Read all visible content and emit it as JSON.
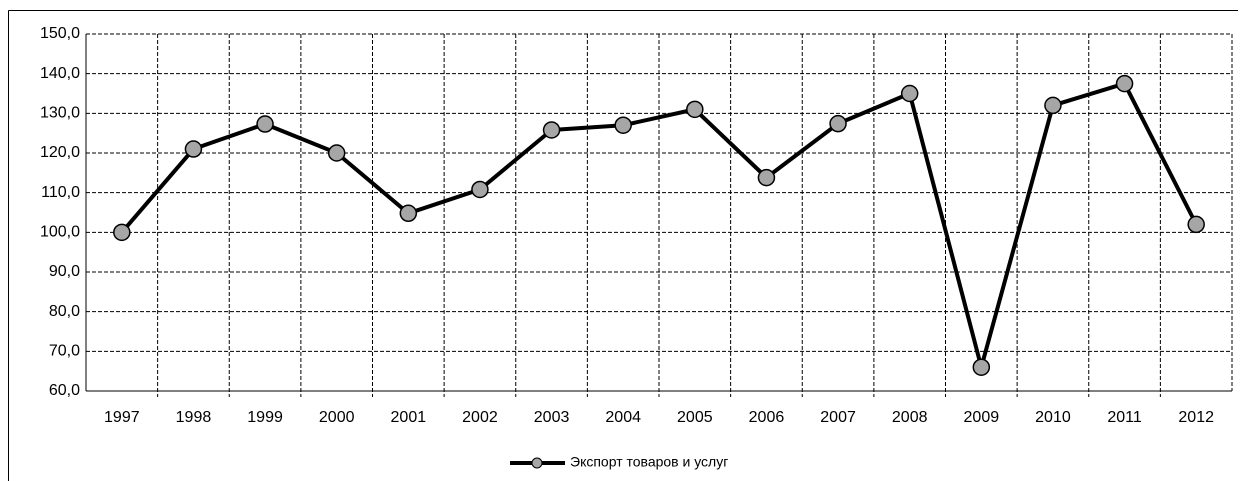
{
  "chart_data": {
    "type": "line",
    "categories": [
      "1997",
      "1998",
      "1999",
      "2000",
      "2001",
      "2002",
      "2003",
      "2004",
      "2005",
      "2006",
      "2007",
      "2008",
      "2009",
      "2010",
      "2011",
      "2012"
    ],
    "series": [
      {
        "name": "Экспорт товаров и услуг",
        "color": "#000000",
        "marker_color": "#a6a6a6",
        "values": [
          100,
          121,
          127.3,
          120,
          104.8,
          110.8,
          125.8,
          127,
          131,
          113.8,
          127.4,
          135,
          66,
          132,
          137.5,
          102
        ]
      }
    ],
    "ylim": [
      60,
      150
    ],
    "yticks": [
      {
        "value": 60,
        "label": "60,0"
      },
      {
        "value": 70,
        "label": "70,0"
      },
      {
        "value": 80,
        "label": "80,0"
      },
      {
        "value": 90,
        "label": "90,0"
      },
      {
        "value": 100,
        "label": "100,0"
      },
      {
        "value": 110,
        "label": "110,0"
      },
      {
        "value": 120,
        "label": "120,0"
      },
      {
        "value": 130,
        "label": "130,0"
      },
      {
        "value": 140,
        "label": "140,0"
      },
      {
        "value": 150,
        "label": "150,0"
      }
    ],
    "grid": true,
    "legend": "bottom"
  }
}
